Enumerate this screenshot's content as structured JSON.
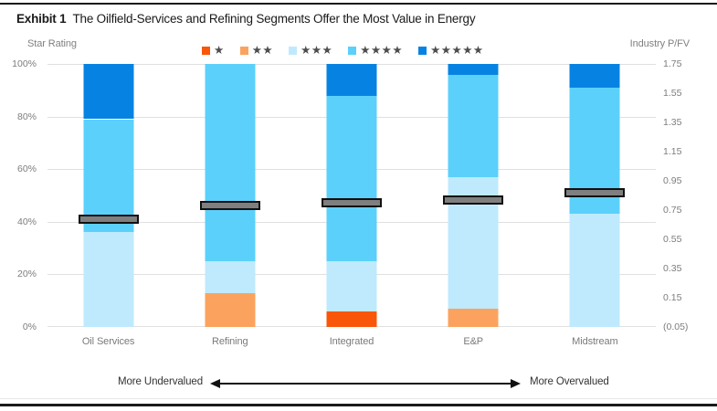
{
  "header": {
    "exhibit_label": "Exhibit 1",
    "title": "The Oilfield-Services and Refining Segments Offer the Most Value in Energy"
  },
  "axes": {
    "left_title": "Star Rating",
    "right_title": "Industry P/FV",
    "left_ticks": [
      "100%",
      "80%",
      "60%",
      "40%",
      "20%",
      "0%"
    ],
    "right_ticks": [
      "1.75",
      "1.55",
      "1.35",
      "1.15",
      "0.95",
      "0.75",
      "0.55",
      "0.35",
      "0.15",
      "(0.05)"
    ]
  },
  "legend": [
    {
      "name": "1-star",
      "stars": "★",
      "color": "#f9560a"
    },
    {
      "name": "2-star",
      "stars": "★★",
      "color": "#fba35e"
    },
    {
      "name": "3-star",
      "stars": "★★★",
      "color": "#bfeafd"
    },
    {
      "name": "4-star",
      "stars": "★★★★",
      "color": "#5bd0fb"
    },
    {
      "name": "5-star",
      "stars": "★★★★★",
      "color": "#0683e2"
    }
  ],
  "footer": {
    "left_label": "More Undervalued",
    "right_label": "More Overvalued"
  },
  "colors": {
    "one_star": "#f9560a",
    "two_star": "#fba35e",
    "three_star": "#bfeafd",
    "four_star": "#5bd0fb",
    "five_star": "#0683e2",
    "marker_fill": "#7f7f7f",
    "marker_border": "#111111",
    "gridline": "#e0e0e0",
    "axis_text": "#7d7d7d",
    "rule": "#1a1a1a"
  },
  "chart_data": {
    "type": "bar",
    "stacked": true,
    "title": "The Oilfield-Services and Refining Segments Offer the Most Value in Energy",
    "left_axis_label": "Star Rating",
    "right_axis_label": "Industry P/FV",
    "left_axis_range": [
      0,
      100
    ],
    "right_axis_range": [
      -0.05,
      1.75
    ],
    "grid": true,
    "legend_position": "top-center",
    "categories": [
      "Oil Services",
      "Refining",
      "Integrated",
      "E&P",
      "Midstream"
    ],
    "series": [
      {
        "name": "1 star",
        "key": "1-star",
        "color": "#f9560a",
        "values": [
          0,
          0,
          6,
          0,
          0
        ]
      },
      {
        "name": "2 stars",
        "key": "2-star",
        "color": "#fba35e",
        "values": [
          0,
          13,
          0,
          7,
          0
        ]
      },
      {
        "name": "3 stars",
        "key": "3-star",
        "color": "#bfeafd",
        "values": [
          36,
          12,
          19,
          50,
          43
        ]
      },
      {
        "name": "4 stars",
        "key": "4-star",
        "color": "#5bd0fb",
        "values": [
          43,
          75,
          63,
          39,
          48
        ]
      },
      {
        "name": "5 stars",
        "key": "5-star",
        "color": "#0683e2",
        "values": [
          21,
          0,
          12,
          4,
          9
        ]
      }
    ],
    "markers": {
      "name": "Industry P/FV",
      "values": [
        0.69,
        0.78,
        0.8,
        0.82,
        0.87
      ]
    }
  }
}
